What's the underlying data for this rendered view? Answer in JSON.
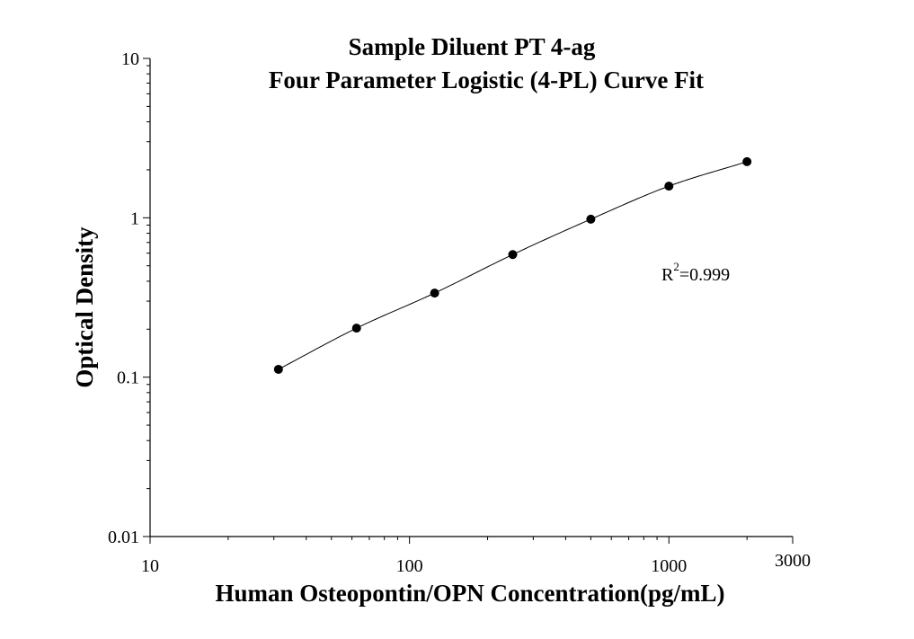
{
  "chart_data": {
    "type": "scatter",
    "title_line1": "Sample Diluent PT 4-ag",
    "title_line2": "Four Parameter Logistic (4-PL) Curve Fit",
    "xlabel": "Human Osteopontin/OPN Concentration(pg/mL)",
    "ylabel": "Optical Density",
    "xscale": "log",
    "yscale": "log",
    "xlim": [
      10,
      3000
    ],
    "ylim": [
      0.01,
      10
    ],
    "x_ticks": [
      {
        "value": 10,
        "label": "10"
      },
      {
        "value": 100,
        "label": "100"
      },
      {
        "value": 1000,
        "label": "1000"
      },
      {
        "value": 3000,
        "label": "3000"
      }
    ],
    "y_ticks": [
      {
        "value": 0.01,
        "label": "0.01"
      },
      {
        "value": 0.1,
        "label": "0.1"
      },
      {
        "value": 1,
        "label": "1"
      },
      {
        "value": 10,
        "label": "10"
      }
    ],
    "points": [
      {
        "x": 31.25,
        "y": 0.112
      },
      {
        "x": 62.5,
        "y": 0.203
      },
      {
        "x": 125,
        "y": 0.337
      },
      {
        "x": 250,
        "y": 0.588
      },
      {
        "x": 500,
        "y": 0.98
      },
      {
        "x": 1000,
        "y": 1.58
      },
      {
        "x": 2000,
        "y": 2.25
      }
    ],
    "fit": {
      "model": "4PL",
      "curve_color": "#000000"
    },
    "annotation": {
      "r_base": "R",
      "r_sup": "2",
      "r_value": "=0.999"
    },
    "marker_color": "#000000",
    "grid": false
  }
}
